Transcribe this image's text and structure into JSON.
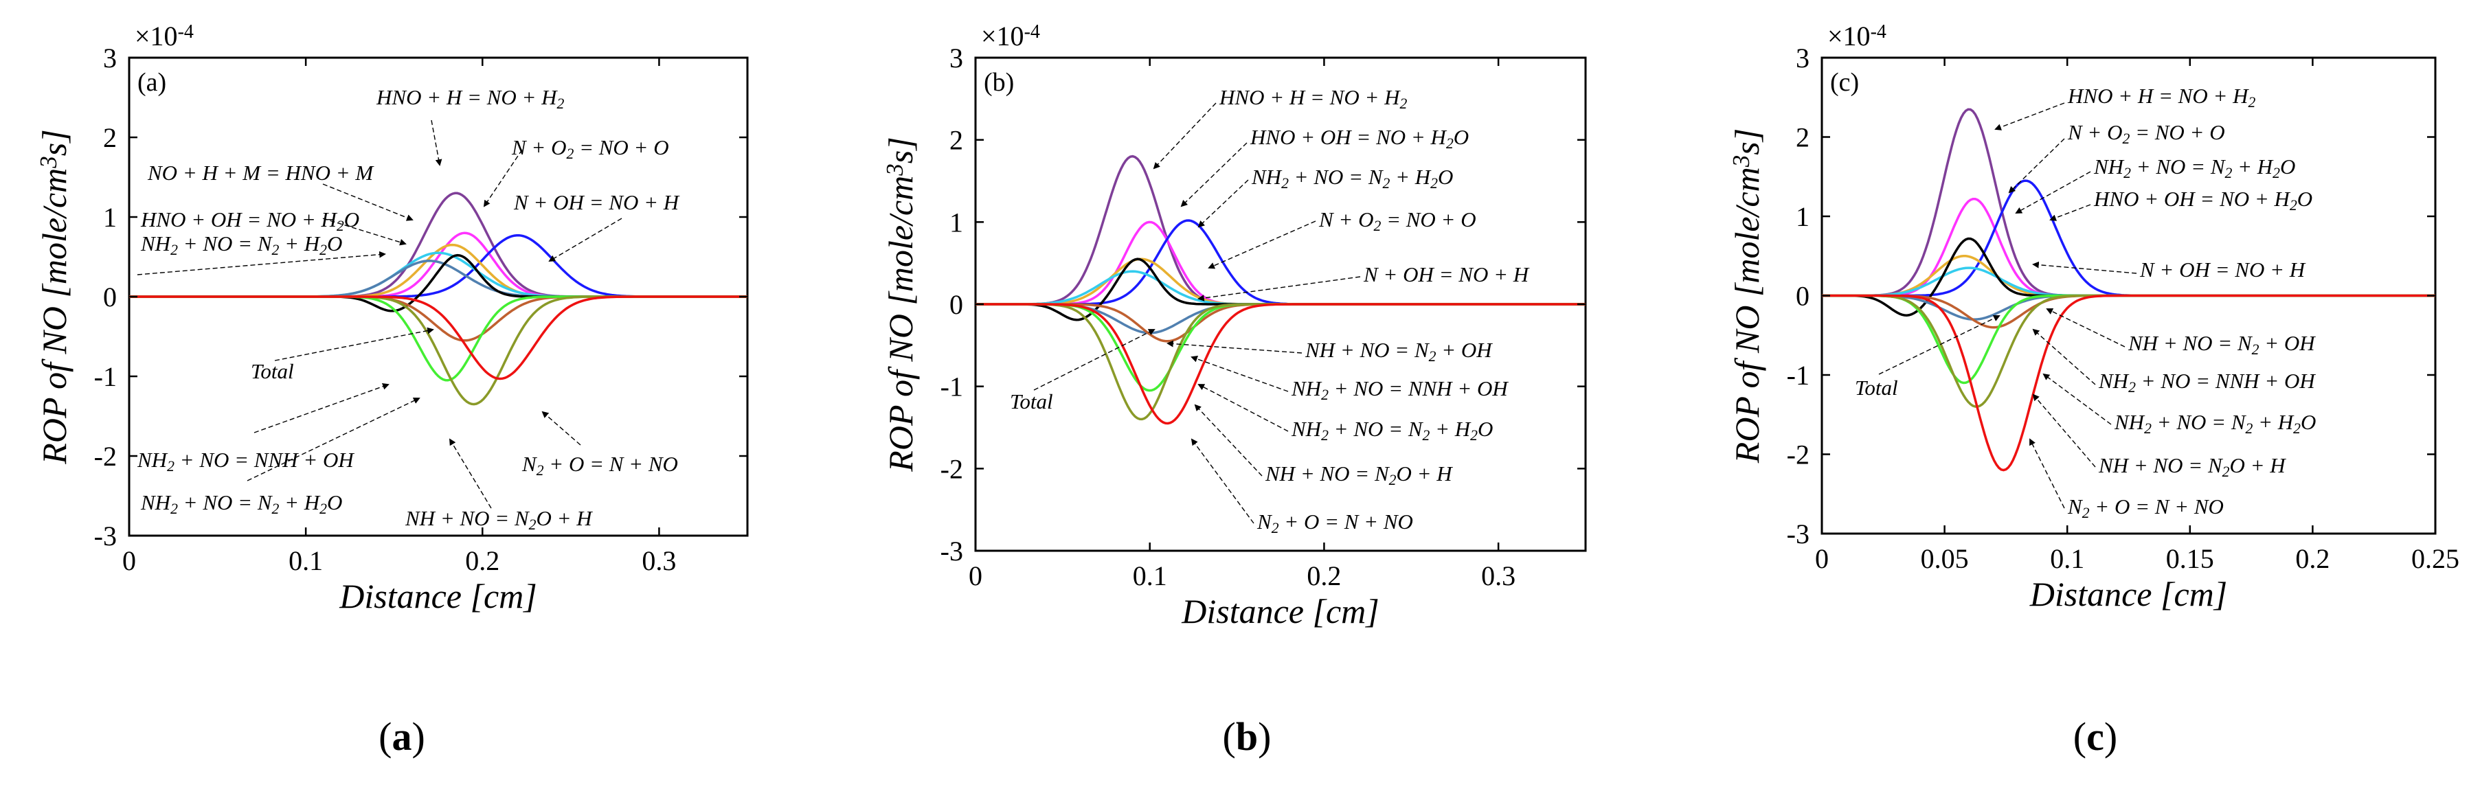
{
  "colors": {
    "purple": "#7f3f98",
    "magenta": "#ff33ff",
    "blue": "#1a1aff",
    "black": "#000000",
    "orange": "#e8b030",
    "cyan": "#33ccee",
    "green": "#44ee33",
    "olive": "#8a9a28",
    "red": "#ee1111",
    "brown": "#c06030",
    "steel": "#5080b0"
  },
  "captions": [
    {
      "open": "(",
      "letter": "a",
      "close": ")"
    },
    {
      "open": "(",
      "letter": "b",
      "close": ")"
    },
    {
      "open": "(",
      "letter": "c",
      "close": ")"
    }
  ],
  "chart_data": [
    {
      "type": "line",
      "panel_label": "(a)",
      "xlabel": "Distance [cm]",
      "ylabel": "ROP of NO [mole/cm³s]",
      "multiplier": "×10⁻⁴",
      "xlim": [
        0,
        0.35
      ],
      "ylim": [
        -3,
        3
      ],
      "xticks": [
        0,
        0.1,
        0.2,
        0.3
      ],
      "xtick_labels": [
        "0",
        "0.1",
        "0.2",
        "0.3"
      ],
      "yticks": [
        -3,
        -2,
        -1,
        0,
        1,
        2,
        3
      ],
      "ytick_labels": [
        "-3",
        "-2",
        "-1",
        "0",
        "1",
        "2",
        "3"
      ],
      "series": [
        {
          "color": "purple",
          "peak": 1.3,
          "center": 0.185,
          "width": 0.025
        },
        {
          "color": "magenta",
          "peak": 0.8,
          "center": 0.19,
          "width": 0.022
        },
        {
          "color": "blue",
          "peak": 0.77,
          "center": 0.22,
          "width": 0.028
        },
        {
          "color": "orange",
          "peak": 0.65,
          "center": 0.183,
          "width": 0.024
        },
        {
          "color": "cyan",
          "peak": 0.55,
          "center": 0.175,
          "width": 0.03
        },
        {
          "color": "steel",
          "peak": 0.45,
          "center": 0.17,
          "width": 0.028
        },
        {
          "color": "black",
          "peak": 0.52,
          "center": 0.186,
          "width": 0.016
        },
        {
          "color": "brown",
          "peak": -0.55,
          "center": 0.19,
          "width": 0.025
        },
        {
          "color": "green",
          "peak": -1.05,
          "center": 0.18,
          "width": 0.022
        },
        {
          "color": "olive",
          "peak": -1.35,
          "center": 0.195,
          "width": 0.025
        },
        {
          "color": "red",
          "peak": -1.03,
          "center": 0.21,
          "width": 0.027
        }
      ],
      "annotations": [
        {
          "text": "HNO + H = NO + H₂"
        },
        {
          "text": "N + O₂ = NO + O"
        },
        {
          "text": "NO + H + M = HNO + M"
        },
        {
          "text": "N + OH = NO + H"
        },
        {
          "text": "HNO + OH = NO + H₂O"
        },
        {
          "text": "NH₂ + NO = N₂ + H₂O"
        },
        {
          "text": "Total"
        },
        {
          "text": "NH₂ + NO = NNH + OH"
        },
        {
          "text": "N₂ + O = N + NO"
        },
        {
          "text": "NH₂ + NO = N₂ + H₂O"
        },
        {
          "text": "NH + NO = N₂O + H"
        }
      ]
    },
    {
      "type": "line",
      "panel_label": "(b)",
      "xlabel": "Distance [cm]",
      "ylabel": "ROP of NO [mole/cm³s]",
      "multiplier": "×10⁻⁴",
      "xlim": [
        0,
        0.35
      ],
      "ylim": [
        -3,
        3
      ],
      "xticks": [
        0,
        0.1,
        0.2,
        0.3
      ],
      "xtick_labels": [
        "0",
        "0.1",
        "0.2",
        "0.3"
      ],
      "yticks": [
        -3,
        -2,
        -1,
        0,
        1,
        2,
        3
      ],
      "ytick_labels": [
        "-3",
        "-2",
        "-1",
        "0",
        "1",
        "2",
        "3"
      ],
      "series": [
        {
          "color": "purple",
          "peak": 1.8,
          "center": 0.09,
          "width": 0.022
        },
        {
          "color": "magenta",
          "peak": 1.0,
          "center": 0.1,
          "width": 0.02
        },
        {
          "color": "blue",
          "peak": 1.02,
          "center": 0.122,
          "width": 0.024
        },
        {
          "color": "orange",
          "peak": 0.55,
          "center": 0.095,
          "width": 0.024
        },
        {
          "color": "cyan",
          "peak": 0.4,
          "center": 0.09,
          "width": 0.026
        },
        {
          "color": "black",
          "peak": 0.55,
          "center": 0.093,
          "width": 0.015
        },
        {
          "color": "steel",
          "peak": -0.35,
          "center": 0.1,
          "width": 0.025
        },
        {
          "color": "brown",
          "peak": -0.45,
          "center": 0.11,
          "width": 0.022
        },
        {
          "color": "green",
          "peak": -1.05,
          "center": 0.1,
          "width": 0.022
        },
        {
          "color": "olive",
          "peak": -1.4,
          "center": 0.095,
          "width": 0.022
        },
        {
          "color": "red",
          "peak": -1.45,
          "center": 0.11,
          "width": 0.025
        }
      ],
      "annotations": [
        {
          "text": "HNO + H = NO + H₂"
        },
        {
          "text": "HNO + OH = NO + H₂O"
        },
        {
          "text": "NH₂ + NO = N₂ + H₂O"
        },
        {
          "text": "N + O₂ = NO + O"
        },
        {
          "text": "N + OH = NO + H"
        },
        {
          "text": "NH + NO = N₂ + OH"
        },
        {
          "text": "Total"
        },
        {
          "text": "NH₂ + NO = NNH + OH"
        },
        {
          "text": "NH₂ + NO = N₂ + H₂O"
        },
        {
          "text": "NH + NO = N₂O + H"
        },
        {
          "text": "N₂ + O = N + NO"
        }
      ]
    },
    {
      "type": "line",
      "panel_label": "(c)",
      "xlabel": "Distance [cm]",
      "ylabel": "ROP of NO [mole/cm³s]",
      "multiplier": "×10⁻⁴",
      "xlim": [
        0,
        0.25
      ],
      "ylim": [
        -3,
        3
      ],
      "xticks": [
        0,
        0.05,
        0.1,
        0.15,
        0.2,
        0.25
      ],
      "xtick_labels": [
        "0",
        "0.05",
        "0.1",
        "0.15",
        "0.2",
        "0.25"
      ],
      "yticks": [
        -3,
        -2,
        -1,
        0,
        1,
        2,
        3
      ],
      "ytick_labels": [
        "-3",
        "-2",
        "-1",
        "0",
        "1",
        "2",
        "3"
      ],
      "series": [
        {
          "color": "purple",
          "peak": 2.35,
          "center": 0.06,
          "width": 0.015
        },
        {
          "color": "magenta",
          "peak": 1.22,
          "center": 0.062,
          "width": 0.014
        },
        {
          "color": "blue",
          "peak": 1.45,
          "center": 0.083,
          "width": 0.017
        },
        {
          "color": "orange",
          "peak": 0.5,
          "center": 0.058,
          "width": 0.016
        },
        {
          "color": "cyan",
          "peak": 0.35,
          "center": 0.06,
          "width": 0.018
        },
        {
          "color": "black",
          "peak": 0.72,
          "center": 0.06,
          "width": 0.011
        },
        {
          "color": "steel",
          "peak": -0.3,
          "center": 0.062,
          "width": 0.017
        },
        {
          "color": "brown",
          "peak": -0.4,
          "center": 0.07,
          "width": 0.016
        },
        {
          "color": "green",
          "peak": -1.1,
          "center": 0.058,
          "width": 0.014
        },
        {
          "color": "olive",
          "peak": -1.4,
          "center": 0.063,
          "width": 0.016
        },
        {
          "color": "red",
          "peak": -2.2,
          "center": 0.074,
          "width": 0.016
        }
      ],
      "annotations": [
        {
          "text": "HNO + H = NO + H₂"
        },
        {
          "text": "N + O₂ = NO + O"
        },
        {
          "text": "NH₂ + NO = N₂ + H₂O"
        },
        {
          "text": "HNO + OH = NO + H₂O"
        },
        {
          "text": "N + OH = NO + H"
        },
        {
          "text": "NH + NO = N₂ + OH"
        },
        {
          "text": "Total"
        },
        {
          "text": "NH₂ + NO = NNH + OH"
        },
        {
          "text": "NH₂ + NO = N₂ + H₂O"
        },
        {
          "text": "NH + NO = N₂O + H"
        },
        {
          "text": "N₂ + O = N + NO"
        }
      ]
    }
  ]
}
